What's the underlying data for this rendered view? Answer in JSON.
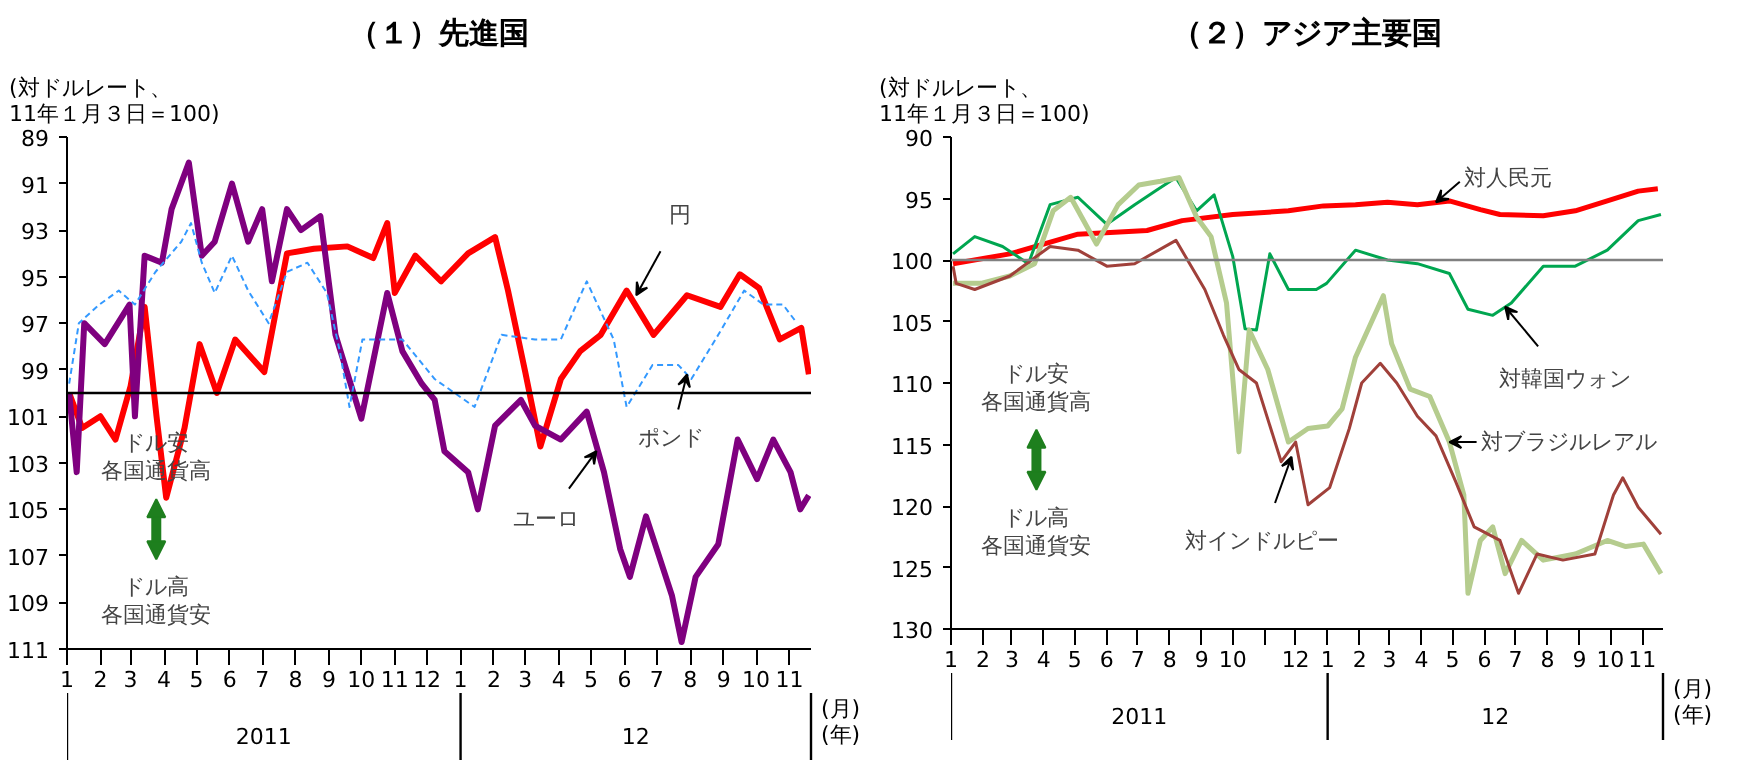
{
  "chart_data": [
    {
      "type": "line",
      "title": "（１）先進国",
      "ylabel": "(対ドルレート、\n11年１月３日＝100)",
      "xlabel": "(月)",
      "xlim": [
        "2011-01-01",
        "2012-11-21"
      ],
      "ylim": [
        111,
        89
      ],
      "yticks": [
        89,
        91,
        93,
        95,
        97,
        99,
        101,
        103,
        105,
        107,
        109,
        111
      ],
      "xticks": [
        {
          "value": "2011-01-01",
          "label": "1"
        },
        {
          "value": "2011-02-01",
          "label": "2"
        },
        {
          "value": "2011-03-01",
          "label": "3"
        },
        {
          "value": "2011-04-01",
          "label": "4"
        },
        {
          "value": "2011-05-01",
          "label": "5"
        },
        {
          "value": "2011-06-01",
          "label": "6"
        },
        {
          "value": "2011-07-01",
          "label": "7"
        },
        {
          "value": "2011-08-01",
          "label": "8"
        },
        {
          "value": "2011-09-01",
          "label": "9"
        },
        {
          "value": "2011-10-01",
          "label": "10"
        },
        {
          "value": "2011-11-01",
          "label": "11"
        },
        {
          "value": "2011-12-01",
          "label": "12"
        },
        {
          "value": "2012-01-01",
          "label": "1"
        },
        {
          "value": "2012-02-01",
          "label": "2"
        },
        {
          "value": "2012-03-01",
          "label": "3"
        },
        {
          "value": "2012-04-01",
          "label": "4"
        },
        {
          "value": "2012-05-01",
          "label": "5"
        },
        {
          "value": "2012-06-01",
          "label": "6"
        },
        {
          "value": "2012-07-01",
          "label": "7"
        },
        {
          "value": "2012-08-01",
          "label": "8"
        },
        {
          "value": "2012-09-01",
          "label": "9"
        },
        {
          "value": "2012-10-01",
          "label": "10"
        },
        {
          "value": "2012-11-01",
          "label": "11"
        }
      ],
      "grid": false,
      "ref_lines": [
        {
          "axis": "y",
          "value": 100,
          "color": "#000000"
        }
      ],
      "series": [
        {
          "color": "#ff0000",
          "x": [
            "2011-01-03",
            "2011-01-15",
            "2011-02-01",
            "2011-02-15",
            "2011-03-01",
            "2011-03-14",
            "2011-03-25",
            "2011-04-03",
            "2011-04-20",
            "2011-05-04",
            "2011-05-20",
            "2011-06-06",
            "2011-07-03",
            "2011-07-24",
            "2011-08-18",
            "2011-09-18",
            "2011-10-12",
            "2011-10-25",
            "2011-11-01",
            "2011-11-20",
            "2011-12-14",
            "2012-01-08",
            "2012-02-02",
            "2012-02-14",
            "2012-03-01",
            "2012-03-15",
            "2012-04-03",
            "2012-04-21",
            "2012-05-10",
            "2012-06-03",
            "2012-06-28",
            "2012-07-29",
            "2012-08-29",
            "2012-09-16",
            "2012-10-04",
            "2012-10-23",
            "2012-11-12",
            "2012-11-19"
          ],
          "values": [
            100,
            101.5,
            101,
            102,
            99.7,
            96.3,
            101,
            104.5,
            101.5,
            97.9,
            100,
            97.7,
            99.1,
            94,
            93.8,
            93.7,
            94.2,
            92.7,
            95.7,
            94.1,
            95.2,
            94,
            93.3,
            95.6,
            99.1,
            102.3,
            99.4,
            98.2,
            97.5,
            95.6,
            97.5,
            95.8,
            96.3,
            94.9,
            95.5,
            97.7,
            97.2,
            99.2
          ]
        },
        {
          "color": "#7f007f",
          "x": [
            "2011-01-03",
            "2011-01-10",
            "2011-01-17",
            "2011-02-05",
            "2011-02-28",
            "2011-03-05",
            "2011-03-14",
            "2011-03-30",
            "2011-04-08",
            "2011-04-24",
            "2011-05-06",
            "2011-05-18",
            "2011-06-03",
            "2011-06-18",
            "2011-07-01",
            "2011-07-10",
            "2011-07-24",
            "2011-08-06",
            "2011-08-24",
            "2011-09-07",
            "2011-10-01",
            "2011-10-25",
            "2011-11-08",
            "2011-11-26",
            "2011-12-08",
            "2011-12-17",
            "2012-01-08",
            "2012-01-17",
            "2012-02-02",
            "2012-02-26",
            "2012-03-10",
            "2012-04-03",
            "2012-04-27",
            "2012-05-13",
            "2012-05-28",
            "2012-06-06",
            "2012-06-21",
            "2012-07-03",
            "2012-07-15",
            "2012-07-24",
            "2012-08-06",
            "2012-08-27",
            "2012-09-14",
            "2012-10-02",
            "2012-10-17",
            "2012-11-02",
            "2012-11-11",
            "2012-11-19"
          ],
          "values": [
            100,
            103.4,
            97,
            97.9,
            96.2,
            101,
            94.1,
            94.4,
            92.1,
            90.1,
            94.1,
            93.5,
            91,
            93.5,
            92.1,
            95.2,
            92.1,
            93,
            92.4,
            97.5,
            101.1,
            95.7,
            98.2,
            99.6,
            100.3,
            102.5,
            103.4,
            105,
            101.4,
            100.3,
            101.4,
            102,
            100.8,
            103.4,
            106.7,
            107.9,
            105.3,
            107,
            108.7,
            110.7,
            107.9,
            106.5,
            102,
            103.7,
            102,
            103.4,
            105,
            104.4
          ]
        },
        {
          "color": "#3399ff",
          "line_style": "dashed",
          "x": [
            "2011-01-03",
            "2011-01-12",
            "2011-01-31",
            "2011-02-18",
            "2011-03-05",
            "2011-03-24",
            "2011-04-17",
            "2011-04-26",
            "2011-05-06",
            "2011-05-18",
            "2011-06-03",
            "2011-06-18",
            "2011-07-07",
            "2011-07-24",
            "2011-08-12",
            "2011-08-30",
            "2011-09-11",
            "2011-09-20",
            "2011-10-02",
            "2011-11-08",
            "2011-12-08",
            "2012-01-14",
            "2012-02-08",
            "2012-03-10",
            "2012-04-03",
            "2012-04-27",
            "2012-05-22",
            "2012-06-03",
            "2012-06-27",
            "2012-07-21",
            "2012-08-02",
            "2012-08-27",
            "2012-09-20",
            "2012-10-08",
            "2012-10-26",
            "2012-11-08"
          ],
          "values": [
            99.6,
            97,
            96.2,
            95.6,
            96.2,
            94.8,
            93.5,
            92.7,
            94.4,
            95.7,
            94.1,
            95.6,
            97,
            94.8,
            94.4,
            95.7,
            98.2,
            100.6,
            97.7,
            97.7,
            99.4,
            100.6,
            97.5,
            97.7,
            97.7,
            95.2,
            97.7,
            100.6,
            98.8,
            98.8,
            99.4,
            97.5,
            95.6,
            96.2,
            96.2,
            97
          ]
        }
      ],
      "annotations": [
        {
          "text": "円",
          "x": "2012-06-12",
          "y": 95.8
        },
        {
          "text": "ポンド",
          "x": "2012-07-29",
          "y": 99.2
        },
        {
          "text": "ユーロ",
          "x": "2012-05-06",
          "y": 102.5
        },
        "ドル安",
        "各国通貨高",
        "ドル高",
        "各国通貨安",
        "(年)",
        "2011",
        "12"
      ]
    },
    {
      "type": "line",
      "title": "（２）アジア主要国",
      "ylabel": "(対ドルレート、\n11年１月３日＝100)",
      "xlabel": "(月)",
      "xlim": [
        "2011-01-01",
        "2012-11-21"
      ],
      "ylim": [
        130,
        90
      ],
      "yticks": [
        90,
        95,
        100,
        105,
        110,
        115,
        120,
        125,
        130
      ],
      "xticks": [
        {
          "value": "2011-01-01",
          "label": "1"
        },
        {
          "value": "2011-02-01",
          "label": "2"
        },
        {
          "value": "2011-03-01",
          "label": "3"
        },
        {
          "value": "2011-04-01",
          "label": "4"
        },
        {
          "value": "2011-05-01",
          "label": "5"
        },
        {
          "value": "2011-06-01",
          "label": "6"
        },
        {
          "value": "2011-07-01",
          "label": "7"
        },
        {
          "value": "2011-08-01",
          "label": "8"
        },
        {
          "value": "2011-09-01",
          "label": "9"
        },
        {
          "value": "2011-10-01",
          "label": "10"
        },
        {
          "value": "2011-11-01",
          "label": null
        },
        {
          "value": "2011-12-01",
          "label": "12"
        },
        {
          "value": "2012-01-01",
          "label": "1"
        },
        {
          "value": "2012-02-01",
          "label": "2"
        },
        {
          "value": "2012-03-01",
          "label": "3"
        },
        {
          "value": "2012-04-01",
          "label": "4"
        },
        {
          "value": "2012-05-01",
          "label": "5"
        },
        {
          "value": "2012-06-01",
          "label": "6"
        },
        {
          "value": "2012-07-01",
          "label": "7"
        },
        {
          "value": "2012-08-01",
          "label": "8"
        },
        {
          "value": "2012-09-01",
          "label": "9"
        },
        {
          "value": "2012-10-01",
          "label": "10"
        },
        {
          "value": "2012-11-01",
          "label": "11"
        }
      ],
      "grid": false,
      "ref_lines": [
        {
          "axis": "y",
          "value": 100,
          "color": "#808080"
        }
      ],
      "series": [
        {
          "color": "#ff0000",
          "x": [
            "2011-01-03",
            "2011-02-27",
            "2011-05-04",
            "2011-07-10",
            "2011-08-13",
            "2011-10-01",
            "2011-11-24",
            "2011-12-28",
            "2012-01-28",
            "2012-02-28",
            "2012-03-28",
            "2012-04-28",
            "2012-05-28",
            "2012-06-16",
            "2012-07-28",
            "2012-08-28",
            "2012-09-28",
            "2012-10-28",
            "2012-11-16"
          ],
          "values": [
            100.3,
            99.5,
            97.9,
            97.6,
            96.8,
            96.3,
            96,
            95.6,
            95.5,
            95.3,
            95.5,
            95.2,
            95.9,
            96.3,
            96.4,
            96,
            95.2,
            94.4,
            94.2
          ]
        },
        {
          "color": "#00a650",
          "x": [
            "2011-01-03",
            "2011-01-24",
            "2011-02-20",
            "2011-03-17",
            "2011-04-07",
            "2011-05-04",
            "2011-06-01",
            "2011-06-28",
            "2011-07-18",
            "2011-08-07",
            "2011-08-27",
            "2011-09-13",
            "2011-10-01",
            "2011-10-13",
            "2011-10-24",
            "2011-11-06",
            "2011-11-24",
            "2011-12-21",
            "2011-12-31",
            "2012-01-28",
            "2012-02-28",
            "2012-03-28",
            "2012-04-28",
            "2012-05-16",
            "2012-06-09",
            "2012-06-27",
            "2012-07-28",
            "2012-08-28",
            "2012-09-28",
            "2012-10-28",
            "2012-11-19"
          ],
          "values": [
            99.5,
            98.1,
            98.9,
            100.3,
            95.5,
            94.9,
            97.1,
            95.5,
            94.4,
            93.3,
            96,
            94.7,
            99.7,
            105.6,
            105.7,
            99.5,
            102.4,
            102.4,
            101.9,
            99.2,
            100,
            100.3,
            101.1,
            104,
            104.5,
            103.5,
            100.5,
            100.5,
            99.2,
            96.8,
            96.3
          ]
        },
        {
          "color": "#b5cc8e",
          "x": [
            "2011-01-03",
            "2011-01-30",
            "2011-02-27",
            "2011-03-23",
            "2011-04-10",
            "2011-04-27",
            "2011-05-22",
            "2011-06-12",
            "2011-07-02",
            "2011-07-23",
            "2011-08-10",
            "2011-08-27",
            "2011-09-10",
            "2011-09-25",
            "2011-10-07",
            "2011-10-17",
            "2011-11-04",
            "2011-11-24",
            "2011-12-13",
            "2012-01-01",
            "2012-01-15",
            "2012-01-28",
            "2012-02-24",
            "2012-03-03",
            "2012-03-21",
            "2012-04-09",
            "2012-04-28",
            "2012-05-12",
            "2012-05-16",
            "2012-05-28",
            "2012-06-09",
            "2012-06-21",
            "2012-07-07",
            "2012-07-28",
            "2012-08-28",
            "2012-09-28",
            "2012-10-16",
            "2012-11-02",
            "2012-11-19"
          ],
          "values": [
            101.9,
            101.9,
            101.3,
            100.3,
            96,
            94.9,
            98.7,
            95.5,
            93.9,
            93.6,
            93.3,
            96.5,
            98.1,
            103.5,
            115.6,
            105.7,
            108.9,
            114.8,
            113.7,
            113.5,
            112.1,
            107.9,
            102.9,
            106.8,
            110.5,
            111.1,
            114.8,
            119.1,
            127.1,
            122.8,
            121.7,
            125.5,
            122.8,
            124.4,
            123.9,
            122.8,
            123.3,
            123.1,
            125.5
          ]
        },
        {
          "color": "#a0403a",
          "x": [
            "2011-01-03",
            "2011-01-06",
            "2011-01-24",
            "2011-02-27",
            "2011-04-07",
            "2011-05-04",
            "2011-06-01",
            "2011-06-28",
            "2011-08-07",
            "2011-09-04",
            "2011-09-22",
            "2011-10-07",
            "2011-10-24",
            "2011-11-17",
            "2011-12-01",
            "2011-12-13",
            "2012-01-03",
            "2012-01-22",
            "2012-02-03",
            "2012-02-21",
            "2012-03-08",
            "2012-03-28",
            "2012-04-15",
            "2012-05-04",
            "2012-05-22",
            "2012-06-16",
            "2012-07-04",
            "2012-07-22",
            "2012-08-16",
            "2012-09-16",
            "2012-10-04",
            "2012-10-13",
            "2012-10-28",
            "2012-11-19"
          ],
          "values": [
            100.5,
            101.9,
            102.4,
            101.3,
            98.9,
            99.2,
            100.5,
            100.3,
            98.4,
            102.4,
            106.1,
            108.9,
            110,
            116.4,
            114.8,
            119.9,
            118.5,
            113.7,
            110,
            108.4,
            110,
            112.7,
            114.3,
            118,
            121.7,
            122.8,
            127.1,
            123.9,
            124.4,
            123.9,
            119.1,
            117.7,
            120.1,
            122.3
          ]
        }
      ],
      "annotations": [
        {
          "text": "対人民元",
          "x": "2012-04-15",
          "y": 95.3
        },
        {
          "text": "対韓国ウォン",
          "x": "2012-06-21",
          "y": 103.8
        },
        {
          "text": "対ブラジルレアル",
          "x": "2012-04-28",
          "y": 114.8
        },
        {
          "text": "対インドルピー",
          "x": "2011-11-27",
          "y": 116
        },
        "ドル安",
        "各国通貨高",
        "ドル高",
        "各国通貨安",
        "(年)",
        "2011",
        "12"
      ]
    }
  ]
}
